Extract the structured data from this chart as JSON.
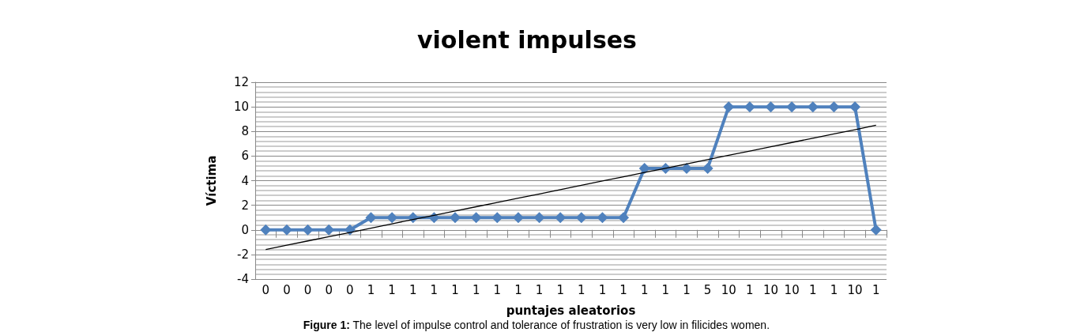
{
  "chart_data": {
    "type": "line",
    "title": "violent impulses",
    "xlabel": "puntajes aleatorios",
    "ylabel": "Víctima",
    "annotations": [
      "Figure 1: The level of impulse control and tolerance of frustration is very low in filicides women."
    ],
    "categories": [
      "0",
      "0",
      "0",
      "0",
      "0",
      "1",
      "1",
      "1",
      "1",
      "1",
      "1",
      "1",
      "1",
      "1",
      "1",
      "1",
      "1",
      "1",
      "1",
      "1",
      "1",
      "5",
      "10",
      "1",
      "10",
      "10",
      "1",
      "1",
      "10",
      "1"
    ],
    "series": [
      {
        "color": "#4f81bd",
        "marker": "diamond",
        "values": [
          0,
          0,
          0,
          0,
          0,
          1,
          1,
          1,
          1,
          1,
          1,
          1,
          1,
          1,
          1,
          1,
          1,
          1,
          5,
          5,
          5,
          5,
          10,
          10,
          10,
          10,
          10,
          10,
          10,
          0
        ]
      },
      {
        "color": "#000000",
        "marker": "none",
        "values": [
          -1.6,
          -1.25,
          -0.9,
          -0.56,
          -0.21,
          0.14,
          0.49,
          0.84,
          1.18,
          1.53,
          1.88,
          2.23,
          2.58,
          2.92,
          3.27,
          3.62,
          3.97,
          4.32,
          4.66,
          5.01,
          5.36,
          5.71,
          6.06,
          6.4,
          6.75,
          7.1,
          7.45,
          7.8,
          8.14,
          8.5
        ]
      }
    ],
    "ylim": [
      -4,
      12
    ],
    "yticks": [
      -4,
      -2,
      0,
      2,
      4,
      6,
      8,
      10,
      12
    ],
    "grid": "y"
  }
}
